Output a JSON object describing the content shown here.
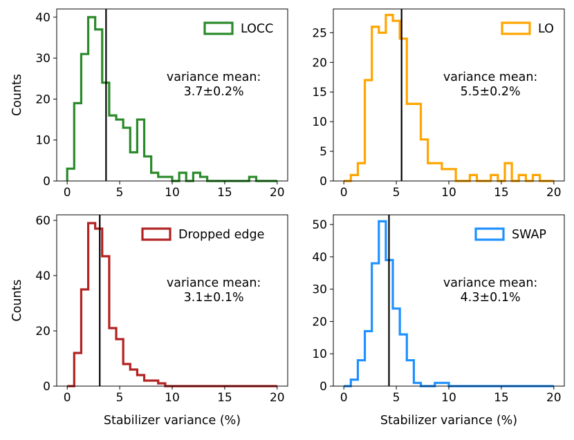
{
  "chart_data": [
    {
      "type": "histogram",
      "legend": "LOCC",
      "color": "#2a8a2a",
      "bin_width": 0.6667,
      "x_start": 0,
      "counts": [
        3,
        19,
        31,
        40,
        37,
        24,
        16,
        15,
        13,
        7,
        15,
        6,
        2,
        1,
        1,
        0,
        2,
        0,
        2,
        1,
        0,
        0,
        0,
        0,
        0,
        0,
        1,
        0,
        0,
        0
      ],
      "mean_line": 3.7,
      "stat_label": "variance mean:",
      "stat_value": "3.7±0.2%",
      "xlim": [
        -1,
        21
      ],
      "ylim": [
        0,
        42
      ],
      "xticks": [
        "0",
        "5",
        "10",
        "15",
        "20"
      ],
      "yticks": [
        "0",
        "10",
        "20",
        "30",
        "40"
      ],
      "ylabel": "Counts",
      "xlabel": ""
    },
    {
      "type": "histogram",
      "legend": "LO",
      "color": "#ffa500",
      "bin_width": 0.6667,
      "x_start": 0,
      "counts": [
        0,
        1,
        3,
        17,
        26,
        25,
        28,
        27,
        24,
        13,
        13,
        7,
        3,
        3,
        2,
        2,
        0,
        0,
        1,
        0,
        0,
        1,
        0,
        3,
        0,
        1,
        0,
        1,
        0,
        0
      ],
      "mean_line": 5.5,
      "stat_label": "variance mean:",
      "stat_value": "5.5±0.2%",
      "xlim": [
        -1,
        21
      ],
      "ylim": [
        0,
        29
      ],
      "xticks": [
        "0",
        "5",
        "10",
        "15",
        "20"
      ],
      "yticks": [
        "0",
        "5",
        "10",
        "15",
        "20",
        "25"
      ],
      "ylabel": "",
      "xlabel": ""
    },
    {
      "type": "histogram",
      "legend": "Dropped edge",
      "color": "#b22222",
      "bin_width": 0.6667,
      "x_start": 0,
      "counts": [
        0,
        12,
        35,
        59,
        57,
        47,
        21,
        17,
        8,
        6,
        4,
        2,
        2,
        1,
        0,
        0,
        0,
        0,
        0,
        0,
        0,
        0,
        0,
        0,
        0,
        0,
        0,
        0,
        0,
        0
      ],
      "mean_line": 3.1,
      "stat_label": "variance mean:",
      "stat_value": "3.1±0.1%",
      "xlim": [
        -1,
        21
      ],
      "ylim": [
        0,
        62
      ],
      "xticks": [
        "0",
        "5",
        "10",
        "15",
        "20"
      ],
      "yticks": [
        "0",
        "20",
        "40",
        "60"
      ],
      "ylabel": "Counts",
      "xlabel": "Stabilizer variance (%)"
    },
    {
      "type": "histogram",
      "legend": "SWAP",
      "color": "#1e90ff",
      "bin_width": 0.6667,
      "x_start": 0,
      "counts": [
        0,
        2,
        8,
        17,
        38,
        51,
        39,
        24,
        16,
        8,
        1,
        0,
        0,
        1,
        1,
        0,
        0,
        0,
        0,
        0,
        0,
        0,
        0,
        0,
        0,
        0,
        0,
        0,
        0,
        0
      ],
      "mean_line": 4.3,
      "stat_label": "variance mean:",
      "stat_value": "4.3±0.1%",
      "xlim": [
        -1,
        21
      ],
      "ylim": [
        0,
        53
      ],
      "xticks": [
        "0",
        "5",
        "10",
        "15",
        "20"
      ],
      "yticks": [
        "0",
        "10",
        "20",
        "30",
        "40",
        "50"
      ],
      "ylabel": "",
      "xlabel": "Stabilizer variance (%)"
    }
  ]
}
